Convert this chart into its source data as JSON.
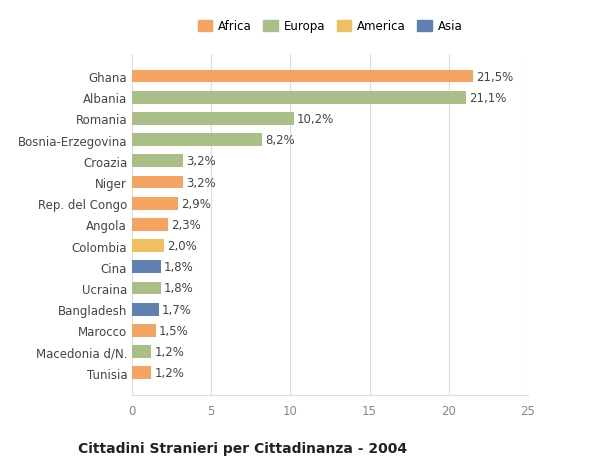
{
  "countries": [
    "Ghana",
    "Albania",
    "Romania",
    "Bosnia-Erzegovina",
    "Croazia",
    "Niger",
    "Rep. del Congo",
    "Angola",
    "Colombia",
    "Cina",
    "Ucraina",
    "Bangladesh",
    "Marocco",
    "Macedonia d/N.",
    "Tunisia"
  ],
  "values": [
    21.5,
    21.1,
    10.2,
    8.2,
    3.2,
    3.2,
    2.9,
    2.3,
    2.0,
    1.8,
    1.8,
    1.7,
    1.5,
    1.2,
    1.2
  ],
  "labels": [
    "21,5%",
    "21,1%",
    "10,2%",
    "8,2%",
    "3,2%",
    "3,2%",
    "2,9%",
    "2,3%",
    "2,0%",
    "1,8%",
    "1,8%",
    "1,7%",
    "1,5%",
    "1,2%",
    "1,2%"
  ],
  "continents": [
    "Africa",
    "Europa",
    "Europa",
    "Europa",
    "Europa",
    "Africa",
    "Africa",
    "Africa",
    "America",
    "Asia",
    "Europa",
    "Asia",
    "Africa",
    "Europa",
    "Africa"
  ],
  "colors": {
    "Africa": "#F4A460",
    "Europa": "#AABF88",
    "America": "#F0C060",
    "Asia": "#6080B0"
  },
  "legend_order": [
    "Africa",
    "Europa",
    "America",
    "Asia"
  ],
  "xlim": [
    0,
    25
  ],
  "xticks": [
    0,
    5,
    10,
    15,
    20,
    25
  ],
  "title": "Cittadini Stranieri per Cittadinanza - 2004",
  "bar_height": 0.6,
  "background_color": "#ffffff",
  "grid_color": "#dddddd",
  "label_fontsize": 8.5,
  "tick_fontsize": 8.5,
  "title_fontsize": 10,
  "subtitle_fontsize": 8
}
